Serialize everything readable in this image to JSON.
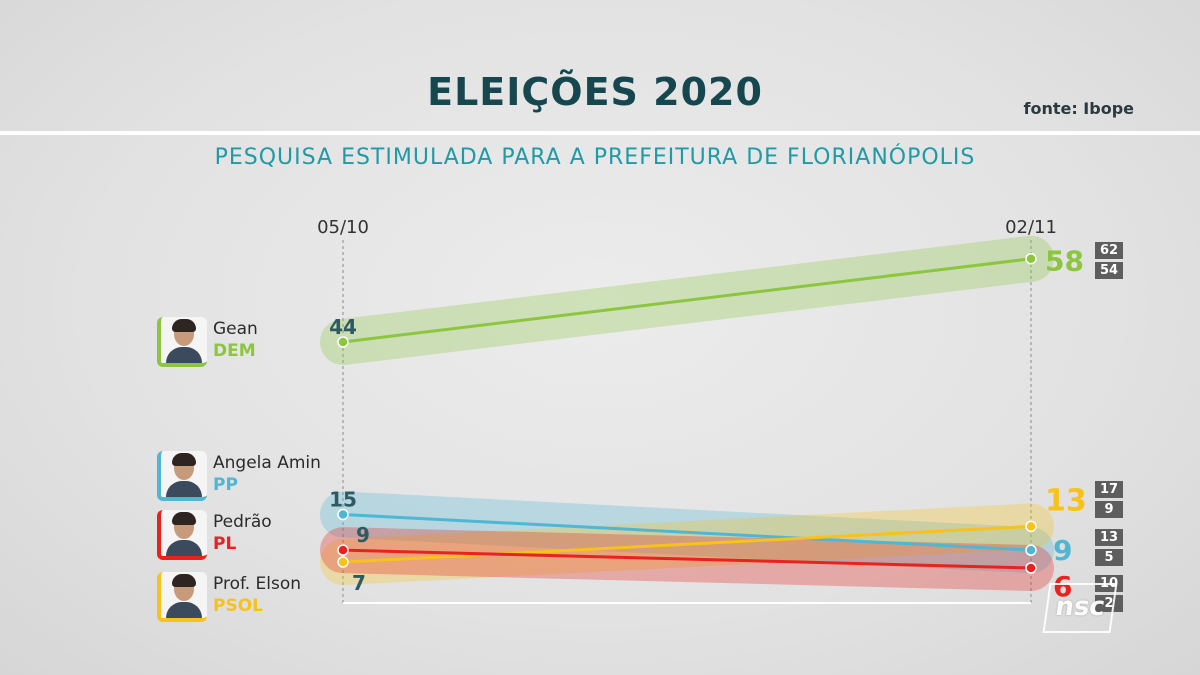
{
  "header": {
    "title": "ELEIÇÕES 2020",
    "source": "fonte: Ibope",
    "subtitle": "PESQUISA ESTIMULADA PARA A PREFEITURA DE FLORIANÓPOLIS"
  },
  "candidates": [
    {
      "name": "Gean",
      "party": "DEM",
      "color": "#8cc63f"
    },
    {
      "name": "Angela Amin",
      "party": "PP",
      "color": "#4fb6d3"
    },
    {
      "name": "Pedrão",
      "party": "PL",
      "color": "#e8231f"
    },
    {
      "name": "Prof. Elson",
      "party": "PSOL",
      "color": "#f7c21a"
    }
  ],
  "ranges": [
    {
      "high": "62",
      "low": "54"
    },
    {
      "high": "17",
      "low": "9"
    },
    {
      "high": "13",
      "low": "5"
    },
    {
      "high": "10",
      "low": "2"
    }
  ],
  "logo": "nsc",
  "chart_data": {
    "type": "line",
    "x": [
      "05/10",
      "02/11"
    ],
    "series": [
      {
        "name": "Gean",
        "values": [
          44,
          58
        ],
        "color": "#8cc63f",
        "label_color": "#2e5b63",
        "end_label_color": "#8cc63f"
      },
      {
        "name": "Angela Amin",
        "values": [
          15,
          9
        ],
        "color": "#4fb6d3",
        "label_color": "#2e5b63",
        "end_label_color": "#4fb6d3"
      },
      {
        "name": "Pedrão",
        "values": [
          9,
          6
        ],
        "color": "#e8231f",
        "label_color": "#2e5b63",
        "end_label_color": "#e8231f"
      },
      {
        "name": "Prof. Elson",
        "values": [
          7,
          13
        ],
        "color": "#f7c21a",
        "label_color": "#2e5b63",
        "end_label_color": "#f7c21a"
      }
    ],
    "grid": false
  }
}
